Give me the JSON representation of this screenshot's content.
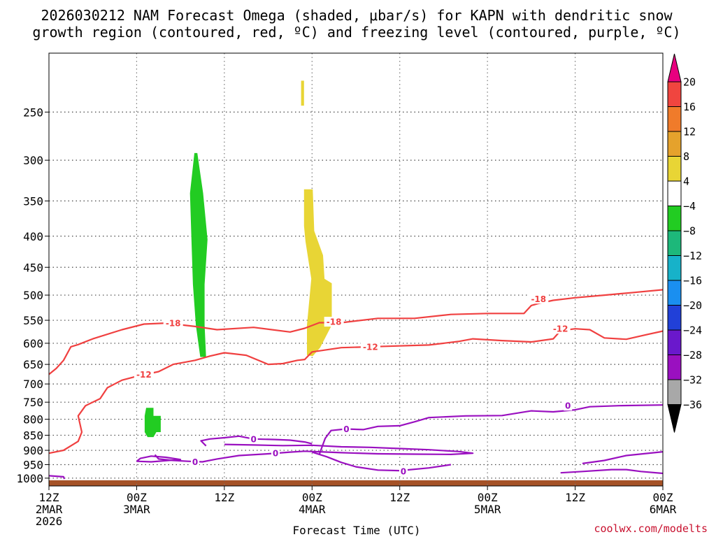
{
  "title": {
    "line1": "2026030212 NAM Forecast Omega (shaded, μbar/s) for KAPN with dendritic snow",
    "line2": "growth region (contoured, red, ºC) and freezing level (contoured, purple, ºC)"
  },
  "credit": "coolwx.com/modelts",
  "chart_data": {
    "type": "heatmap",
    "xlabel": "Forecast Time (UTC)",
    "x_unit": "forecast hour",
    "xlim": [
      0,
      84
    ],
    "x_ticks": [
      {
        "hour": 0,
        "l1": "12Z",
        "l2": "2MAR",
        "l3": "2026"
      },
      {
        "hour": 12,
        "l1": "00Z",
        "l2": "3MAR",
        "l3": ""
      },
      {
        "hour": 24,
        "l1": "12Z",
        "l2": "",
        "l3": ""
      },
      {
        "hour": 36,
        "l1": "00Z",
        "l2": "4MAR",
        "l3": ""
      },
      {
        "hour": 48,
        "l1": "12Z",
        "l2": "",
        "l3": ""
      },
      {
        "hour": 60,
        "l1": "00Z",
        "l2": "5MAR",
        "l3": ""
      },
      {
        "hour": 72,
        "l1": "12Z",
        "l2": "",
        "l3": ""
      },
      {
        "hour": 84,
        "l1": "00Z",
        "l2": "6MAR",
        "l3": ""
      }
    ],
    "y_unit": "pressure (mb), log scale, inverted",
    "ylim": [
      1030,
      200
    ],
    "y_ticks": [
      250,
      300,
      350,
      400,
      450,
      500,
      550,
      600,
      650,
      700,
      750,
      800,
      850,
      900,
      950,
      1000
    ],
    "grid": true,
    "colorbar": {
      "labels": [
        "20",
        "16",
        "12",
        "8",
        "4",
        "−4",
        "−8",
        "−12",
        "−16",
        "−20",
        "−24",
        "−28",
        "−32",
        "−36"
      ],
      "bins": [
        {
          "range": [
            20,
            99
          ],
          "color": "#e8007f"
        },
        {
          "range": [
            16,
            20
          ],
          "color": "#f0453f"
        },
        {
          "range": [
            12,
            16
          ],
          "color": "#f07b2a"
        },
        {
          "range": [
            8,
            12
          ],
          "color": "#e5a22c"
        },
        {
          "range": [
            4,
            8
          ],
          "color": "#e8d535"
        },
        {
          "range": [
            -4,
            4
          ],
          "color": "#ffffff"
        },
        {
          "range": [
            -8,
            -4
          ],
          "color": "#22cc22"
        },
        {
          "range": [
            -12,
            -8
          ],
          "color": "#1db87a"
        },
        {
          "range": [
            -16,
            -12
          ],
          "color": "#17b2c9"
        },
        {
          "range": [
            -20,
            -16
          ],
          "color": "#1a8ff0"
        },
        {
          "range": [
            -24,
            -20
          ],
          "color": "#2140d8"
        },
        {
          "range": [
            -28,
            -24
          ],
          "color": "#6a18cc"
        },
        {
          "range": [
            -32,
            -28
          ],
          "color": "#9a10c0"
        },
        {
          "range": [
            -36,
            -32
          ],
          "color": "#a8a8a8"
        },
        {
          "range": [
            -99,
            -36
          ],
          "color": "#000000"
        }
      ]
    },
    "omega_regions": [
      {
        "name": "upward motion, 4 to 8",
        "color": "#e8d535",
        "points": [
          [
            34.5,
            222
          ],
          [
            34.9,
            222
          ],
          [
            34.9,
            244
          ],
          [
            34.5,
            244
          ]
        ]
      },
      {
        "name": "upward motion, 4 to 8",
        "color": "#e8d535",
        "points": [
          [
            34.9,
            335
          ],
          [
            36.1,
            335
          ],
          [
            36.3,
            392
          ],
          [
            37.5,
            430
          ],
          [
            37.7,
            470
          ],
          [
            38.7,
            478
          ],
          [
            38.7,
            560
          ],
          [
            37.1,
            610
          ],
          [
            36.1,
            630
          ],
          [
            35.3,
            628
          ],
          [
            35.3,
            560
          ],
          [
            35.9,
            470
          ],
          [
            35.1,
            408
          ],
          [
            34.9,
            385
          ]
        ]
      },
      {
        "name": "downward motion, -4 to -8",
        "color": "#22cc22",
        "points": [
          [
            19.9,
            292
          ],
          [
            20.3,
            292
          ],
          [
            21.1,
            340
          ],
          [
            21.7,
            405
          ],
          [
            21.3,
            480
          ],
          [
            21.3,
            560
          ],
          [
            21.5,
            632
          ],
          [
            20.7,
            632
          ],
          [
            20.1,
            560
          ],
          [
            19.7,
            480
          ],
          [
            19.5,
            405
          ],
          [
            19.3,
            340
          ]
        ]
      },
      {
        "name": "downward motion, -4 to -8",
        "color": "#22cc22",
        "points": [
          [
            13.3,
            766
          ],
          [
            14.3,
            766
          ],
          [
            14.3,
            790
          ],
          [
            15.3,
            790
          ],
          [
            15.3,
            840
          ],
          [
            14.7,
            840
          ],
          [
            14.3,
            856
          ],
          [
            13.5,
            856
          ],
          [
            13.1,
            840
          ],
          [
            13.1,
            790
          ]
        ]
      }
    ],
    "contours": [
      {
        "name": "-18 dendritic growth isotherm",
        "color": "#f04040",
        "label": "-18",
        "points": [
          [
            0,
            675
          ],
          [
            1,
            660
          ],
          [
            2,
            640
          ],
          [
            3,
            608
          ],
          [
            4,
            603
          ],
          [
            6,
            590
          ],
          [
            10,
            570
          ],
          [
            13,
            558
          ],
          [
            16,
            556
          ],
          [
            20,
            563
          ],
          [
            23,
            570
          ],
          [
            28,
            565
          ],
          [
            33,
            575
          ],
          [
            35,
            567
          ],
          [
            37,
            555
          ],
          [
            40,
            555
          ],
          [
            45,
            546
          ],
          [
            50,
            546
          ],
          [
            55,
            538
          ],
          [
            60,
            536
          ],
          [
            62,
            536
          ],
          [
            65,
            536
          ],
          [
            66,
            520
          ],
          [
            67,
            516
          ],
          [
            69,
            510
          ],
          [
            72,
            505
          ],
          [
            76,
            500
          ],
          [
            80,
            495
          ],
          [
            84,
            490
          ]
        ],
        "label_points": [
          [
            17,
            556
          ],
          [
            39,
            553
          ],
          [
            67,
            507
          ]
        ]
      },
      {
        "name": "-12 dendritic growth isotherm",
        "color": "#f04040",
        "label": "-12",
        "points": [
          [
            0,
            910
          ],
          [
            2,
            900
          ],
          [
            4,
            870
          ],
          [
            4.5,
            840
          ],
          [
            4,
            790
          ],
          [
            5,
            760
          ],
          [
            7,
            740
          ],
          [
            8,
            710
          ],
          [
            10,
            690
          ],
          [
            12,
            680
          ],
          [
            15,
            668
          ],
          [
            17,
            650
          ],
          [
            20,
            640
          ],
          [
            22,
            630
          ],
          [
            24,
            622
          ],
          [
            27,
            628
          ],
          [
            30,
            650
          ],
          [
            32,
            648
          ],
          [
            34,
            640
          ],
          [
            35,
            638
          ],
          [
            36,
            620
          ],
          [
            40,
            610
          ],
          [
            46,
            607
          ],
          [
            52,
            604
          ],
          [
            56,
            596
          ],
          [
            58,
            590
          ],
          [
            62,
            594
          ],
          [
            66,
            597
          ],
          [
            69,
            590
          ],
          [
            70,
            572
          ],
          [
            72,
            568
          ],
          [
            74,
            570
          ],
          [
            76,
            588
          ],
          [
            79,
            591
          ],
          [
            82,
            580
          ],
          [
            84,
            573
          ]
        ],
        "label_points": [
          [
            13,
            675
          ],
          [
            44,
            608
          ],
          [
            70,
            568
          ]
        ]
      },
      {
        "name": "0 freezing level (lower branch)",
        "color": "#9a10c0",
        "label": "0",
        "points": [
          [
            14.5,
            915
          ],
          [
            15,
            930
          ],
          [
            17,
            935
          ],
          [
            19,
            938
          ],
          [
            21,
            940
          ],
          [
            23,
            930
          ],
          [
            26,
            918
          ],
          [
            30,
            912
          ],
          [
            33,
            906
          ],
          [
            35,
            903
          ],
          [
            37,
            905
          ],
          [
            40,
            908
          ],
          [
            45,
            912
          ],
          [
            50,
            913
          ],
          [
            55,
            914
          ],
          [
            58,
            910
          ],
          [
            56,
            904
          ],
          [
            52,
            898
          ],
          [
            48,
            894
          ],
          [
            44,
            890
          ],
          [
            40,
            888
          ],
          [
            36,
            883
          ],
          [
            32,
            884
          ],
          [
            28,
            882
          ],
          [
            24,
            880
          ]
        ],
        "label_points": [
          [
            20,
            940
          ],
          [
            31,
            910
          ]
        ]
      },
      {
        "name": "0 freezing level (mid branch)",
        "color": "#9a10c0",
        "label": "0",
        "points": [
          [
            21.5,
            885
          ],
          [
            20.8,
            868
          ],
          [
            22,
            862
          ],
          [
            24,
            858
          ],
          [
            26,
            853
          ],
          [
            28,
            862
          ],
          [
            31,
            864
          ],
          [
            33,
            866
          ],
          [
            35,
            872
          ],
          [
            36,
            878
          ]
        ],
        "label_points": [
          [
            28,
            862
          ]
        ]
      },
      {
        "name": "0 freezing level (upper branch)",
        "color": "#9a10c0",
        "label": "0",
        "points": [
          [
            37,
            914
          ],
          [
            37.2,
            900
          ],
          [
            37.8,
            860
          ],
          [
            38.6,
            835
          ],
          [
            40.6,
            830
          ],
          [
            43,
            832
          ],
          [
            45,
            822
          ],
          [
            48,
            820
          ],
          [
            50,
            808
          ],
          [
            52,
            795
          ],
          [
            57,
            790
          ],
          [
            62,
            789
          ],
          [
            66,
            775
          ],
          [
            69,
            778
          ],
          [
            72,
            772
          ],
          [
            74,
            763
          ],
          [
            78,
            760
          ],
          [
            84,
            758
          ]
        ],
        "label_points": [
          [
            40.7,
            830
          ],
          [
            71,
            760
          ]
        ]
      },
      {
        "name": "0 freezing level (surface branch)",
        "color": "#9a10c0",
        "label": "0",
        "points": [
          [
            0,
            991
          ],
          [
            2,
            995
          ],
          [
            2.1,
            1003
          ]
        ]
      },
      {
        "name": "0 freezing level (low loop)",
        "color": "#9a10c0",
        "label": "0",
        "points": [
          [
            12,
            938
          ],
          [
            12.5,
            928
          ],
          [
            14,
            920
          ],
          [
            16,
            924
          ],
          [
            18,
            932
          ],
          [
            14,
            940
          ],
          [
            12,
            938
          ]
        ]
      },
      {
        "name": "0 freezing level (east surface)",
        "color": "#9a10c0",
        "label": "0",
        "points": [
          [
            36,
            906
          ],
          [
            38,
            922
          ],
          [
            40,
            942
          ],
          [
            42,
            958
          ],
          [
            45,
            970
          ],
          [
            48,
            972
          ],
          [
            52,
            962
          ],
          [
            55,
            950
          ]
        ],
        "label_points": [
          [
            48.5,
            974
          ]
        ]
      },
      {
        "name": "0 freezing level (right upper)",
        "color": "#9a10c0",
        "label": "0",
        "points": [
          [
            73,
            946
          ],
          [
            76,
            935
          ],
          [
            79,
            918
          ],
          [
            84,
            905
          ]
        ]
      },
      {
        "name": "0 freezing level (right lower)",
        "color": "#9a10c0",
        "label": "0",
        "points": [
          [
            70,
            980
          ],
          [
            73,
            975
          ],
          [
            77,
            968
          ],
          [
            79,
            968
          ],
          [
            81,
            975
          ],
          [
            84,
            982
          ]
        ]
      }
    ],
    "terrain": {
      "color": "#a55227",
      "level_mb": 1008
    }
  }
}
